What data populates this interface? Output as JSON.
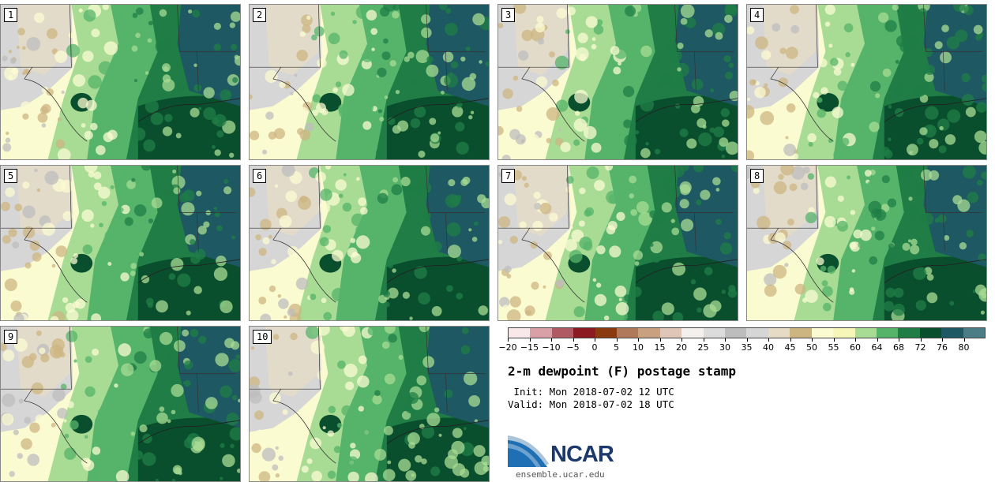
{
  "panels": [
    "1",
    "2",
    "3",
    "4",
    "5",
    "6",
    "7",
    "8",
    "9",
    "10"
  ],
  "colorbar": {
    "labels": [
      "-20",
      "-15",
      "-10",
      "-5",
      "0",
      "5",
      "10",
      "15",
      "20",
      "25",
      "30",
      "35",
      "40",
      "45",
      "50",
      "55",
      "60",
      "64",
      "68",
      "72",
      "76",
      "80"
    ],
    "colors": [
      "#f8e8ea",
      "#d9a0a8",
      "#b05a63",
      "#8b1a22",
      "#8b3a0f",
      "#b07a5a",
      "#c9a080",
      "#dfc6b6",
      "#f3f0ee",
      "#dcdcdc",
      "#bdbdbd",
      "#d6d6d6",
      "#e6dcc6",
      "#cdb582",
      "#fbfbd2",
      "#f6f6b8",
      "#a8dc94",
      "#55b46a",
      "#1f7d45",
      "#0a4f2d",
      "#1e5862",
      "#4a7d86"
    ]
  },
  "title": "2-m dewpoint (F) postage stamp",
  "init": " Init: Mon 2018-07-02 12 UTC",
  "valid": "Valid: Mon 2018-07-02 18 UTC",
  "logo_text": "NCAR",
  "logo_url": "ensemble.ucar.edu"
}
